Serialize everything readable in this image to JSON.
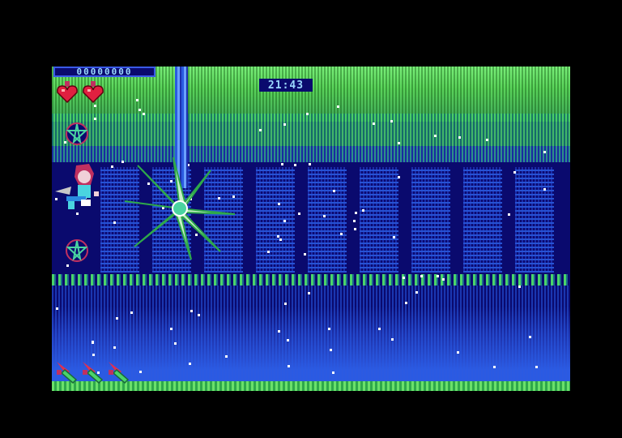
{
  "hud": {
    "score": "00000000",
    "timer": "21:43",
    "lives_count": 2,
    "bombs_count": 3
  },
  "icons": {
    "life": "heart-potion-icon",
    "bomb": "missile-icon",
    "rune": "pentagram-rune-icon"
  },
  "colors": {
    "sky": "#5ad45a",
    "night": "#0a0a6e",
    "water": "#2d5ae0",
    "boss": "#c8f0c8",
    "hud_text": "#9ad8ff"
  }
}
